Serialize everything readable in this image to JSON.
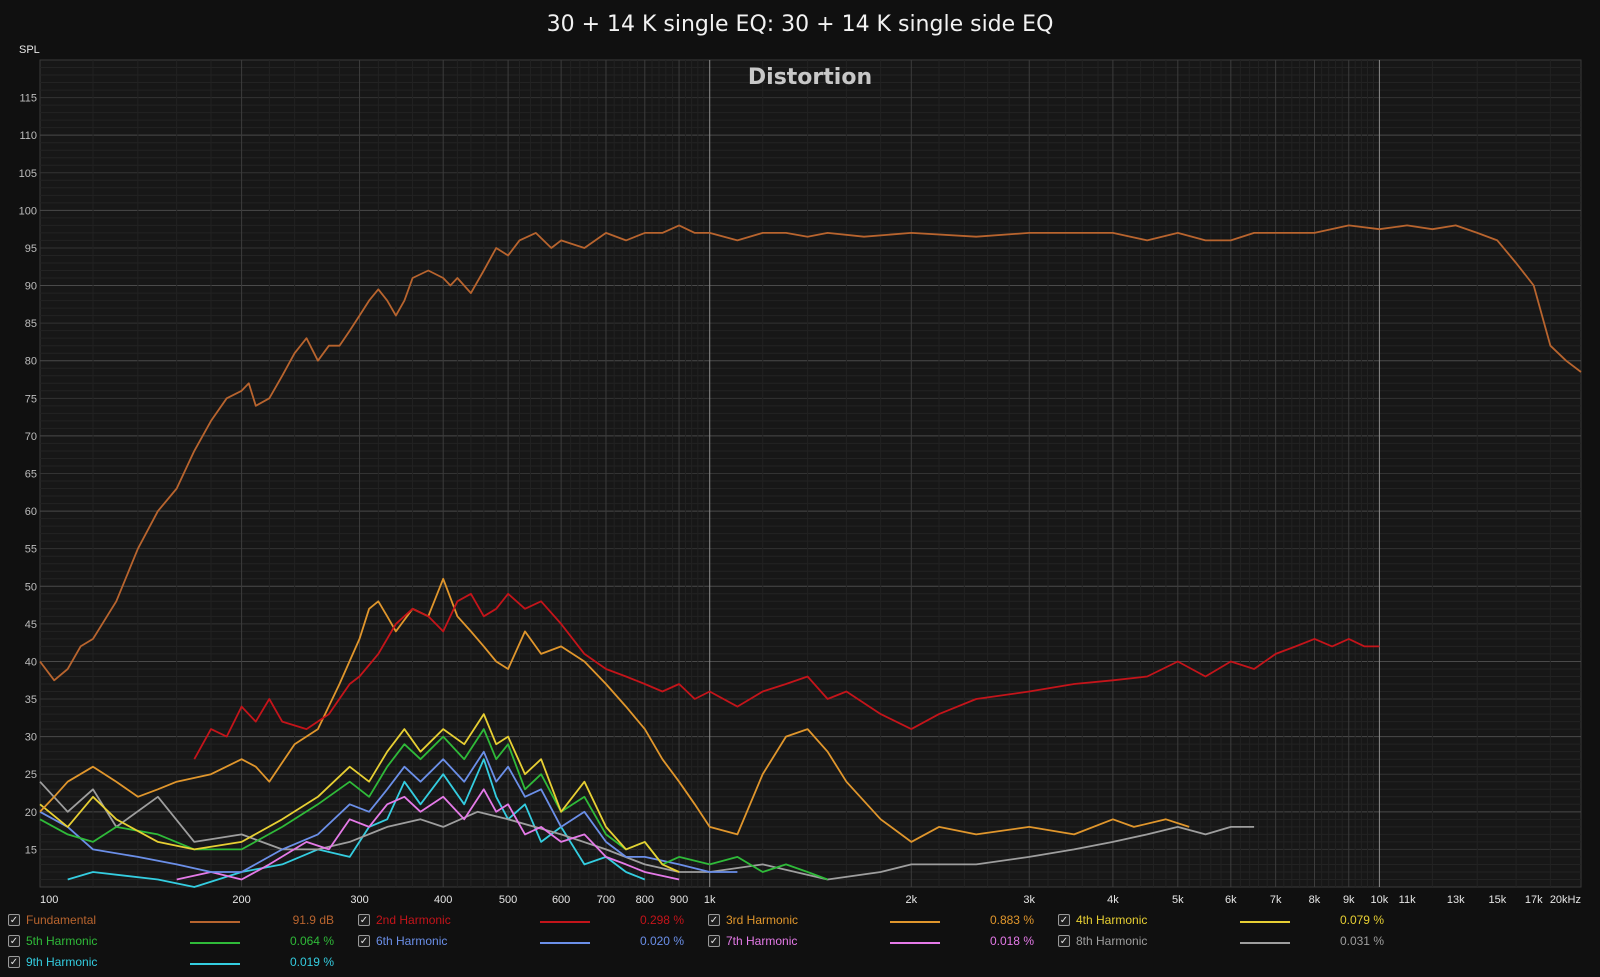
{
  "chart_data": {
    "type": "line",
    "title": "30 + 14 K single EQ: 30 + 14 K single side EQ",
    "plot_label": "Distortion",
    "ylabel": "SPL",
    "x_scale": "log",
    "xlim": [
      100,
      20000
    ],
    "ylim": [
      10,
      120
    ],
    "grid": true,
    "x_tick_labels": [
      {
        "v": 100,
        "t": "100"
      },
      {
        "v": 200,
        "t": "200"
      },
      {
        "v": 300,
        "t": "300"
      },
      {
        "v": 400,
        "t": "400"
      },
      {
        "v": 500,
        "t": "500"
      },
      {
        "v": 600,
        "t": "600"
      },
      {
        "v": 700,
        "t": "700"
      },
      {
        "v": 800,
        "t": "800"
      },
      {
        "v": 900,
        "t": "900"
      },
      {
        "v": 1000,
        "t": "1k"
      },
      {
        "v": 2000,
        "t": "2k"
      },
      {
        "v": 3000,
        "t": "3k"
      },
      {
        "v": 4000,
        "t": "4k"
      },
      {
        "v": 5000,
        "t": "5k"
      },
      {
        "v": 6000,
        "t": "6k"
      },
      {
        "v": 7000,
        "t": "7k"
      },
      {
        "v": 8000,
        "t": "8k"
      },
      {
        "v": 9000,
        "t": "9k"
      },
      {
        "v": 10000,
        "t": "10k"
      },
      {
        "v": 11000,
        "t": "11k"
      },
      {
        "v": 13000,
        "t": "13k"
      },
      {
        "v": 15000,
        "t": "15k"
      },
      {
        "v": 17000,
        "t": "17k"
      },
      {
        "v": 20000,
        "t": "20kHz"
      }
    ],
    "y_ticks": [
      15,
      20,
      25,
      30,
      35,
      40,
      45,
      50,
      55,
      60,
      65,
      70,
      75,
      80,
      85,
      90,
      95,
      100,
      105,
      110,
      115
    ],
    "series": [
      {
        "name": "Fundamental",
        "color": "#b8642e",
        "value_label": "91.9 dB",
        "x": [
          100,
          105,
          110,
          115,
          120,
          130,
          140,
          150,
          160,
          170,
          180,
          190,
          200,
          205,
          210,
          220,
          230,
          240,
          250,
          260,
          270,
          280,
          290,
          300,
          310,
          320,
          330,
          340,
          350,
          360,
          380,
          400,
          410,
          420,
          440,
          460,
          480,
          500,
          520,
          550,
          580,
          600,
          650,
          700,
          750,
          800,
          850,
          900,
          950,
          1000,
          1100,
          1200,
          1300,
          1400,
          1500,
          1700,
          2000,
          2500,
          3000,
          3500,
          4000,
          4500,
          5000,
          5500,
          6000,
          6500,
          7000,
          8000,
          9000,
          10000,
          11000,
          12000,
          13000,
          14000,
          15000,
          16000,
          17000,
          18000,
          19000,
          20000
        ],
        "y": [
          40,
          37.5,
          39,
          42,
          43,
          48,
          55,
          60,
          63,
          68,
          72,
          75,
          76,
          77,
          74,
          75,
          78,
          81,
          83,
          80,
          82,
          82,
          84,
          86,
          88,
          89.5,
          88,
          86,
          88,
          91,
          92,
          91,
          90,
          91,
          89,
          92,
          95,
          94,
          96,
          97,
          95,
          96,
          95,
          97,
          96,
          97,
          97,
          98,
          97,
          97,
          96,
          97,
          97,
          96.5,
          97,
          96.5,
          97,
          96.5,
          97,
          97,
          97,
          96,
          97,
          96,
          96,
          97,
          97,
          97,
          98,
          97.5,
          98,
          97.5,
          98,
          97,
          96,
          93,
          90,
          82,
          80,
          78.5
        ]
      },
      {
        "name": "2nd Harmonic",
        "color": "#c4141a",
        "value_label": "0.298 %",
        "x": [
          170,
          180,
          190,
          200,
          210,
          220,
          230,
          250,
          270,
          290,
          300,
          320,
          340,
          360,
          380,
          400,
          420,
          440,
          460,
          480,
          500,
          530,
          560,
          600,
          650,
          700,
          750,
          800,
          850,
          900,
          950,
          1000,
          1100,
          1200,
          1300,
          1400,
          1500,
          1600,
          1800,
          2000,
          2200,
          2500,
          3000,
          3500,
          4000,
          4500,
          5000,
          5500,
          6000,
          6500,
          7000,
          7500,
          8000,
          8500,
          9000,
          9500,
          10000
        ],
        "y": [
          27,
          31,
          30,
          34,
          32,
          35,
          32,
          31,
          33,
          37,
          38,
          41,
          45,
          47,
          46,
          44,
          48,
          49,
          46,
          47,
          49,
          47,
          48,
          45,
          41,
          39,
          38,
          37,
          36,
          37,
          35,
          36,
          34,
          36,
          37,
          38,
          35,
          36,
          33,
          31,
          33,
          35,
          36,
          37,
          37.5,
          38,
          40,
          38,
          40,
          39,
          41,
          42,
          43,
          42,
          43,
          42,
          42
        ]
      },
      {
        "name": "3rd Harmonic",
        "color": "#e0962c",
        "value_label": "0.883 %",
        "x": [
          100,
          105,
          110,
          120,
          130,
          140,
          150,
          160,
          180,
          200,
          210,
          220,
          240,
          260,
          280,
          300,
          310,
          320,
          330,
          340,
          360,
          380,
          400,
          420,
          440,
          460,
          480,
          500,
          530,
          560,
          600,
          650,
          700,
          750,
          800,
          850,
          900,
          950,
          1000,
          1100,
          1200,
          1300,
          1400,
          1500,
          1600,
          1800,
          2000,
          2200,
          2500,
          3000,
          3500,
          4000,
          4300,
          4800,
          5200
        ],
        "y": [
          20,
          22,
          24,
          26,
          24,
          22,
          23,
          24,
          25,
          27,
          26,
          24,
          29,
          31,
          37,
          43,
          47,
          48,
          46,
          44,
          47,
          46,
          51,
          46,
          44,
          42,
          40,
          39,
          44,
          41,
          42,
          40,
          37,
          34,
          31,
          27,
          24,
          21,
          18,
          17,
          25,
          30,
          31,
          28,
          24,
          19,
          16,
          18,
          17,
          18,
          17,
          19,
          18,
          19,
          18
        ]
      },
      {
        "name": "4th Harmonic",
        "color": "#e7cf33",
        "value_label": "0.079 %",
        "x": [
          100,
          110,
          120,
          130,
          150,
          170,
          200,
          230,
          260,
          290,
          310,
          330,
          350,
          370,
          400,
          430,
          460,
          480,
          500,
          530,
          560,
          600,
          650,
          700,
          750,
          800,
          850,
          900
        ],
        "y": [
          21,
          18,
          22,
          19,
          16,
          15,
          16,
          19,
          22,
          26,
          24,
          28,
          31,
          28,
          31,
          29,
          33,
          29,
          30,
          25,
          27,
          20,
          24,
          18,
          15,
          16,
          13,
          12
        ]
      },
      {
        "name": "5th Harmonic",
        "color": "#2fba39",
        "value_label": "0.064 %",
        "x": [
          100,
          110,
          120,
          130,
          150,
          170,
          200,
          230,
          260,
          290,
          310,
          330,
          350,
          370,
          400,
          430,
          460,
          480,
          500,
          530,
          560,
          600,
          650,
          700,
          750,
          800,
          850,
          900,
          1000,
          1100,
          1200,
          1300,
          1400,
          1500
        ],
        "y": [
          19,
          17,
          16,
          18,
          17,
          15,
          15,
          18,
          21,
          24,
          22,
          26,
          29,
          27,
          30,
          27,
          31,
          27,
          29,
          23,
          25,
          20,
          22,
          17,
          15,
          16,
          13,
          14,
          13,
          14,
          12,
          13,
          12,
          11
        ]
      },
      {
        "name": "6th Harmonic",
        "color": "#6b8fe8",
        "value_label": "0.020 %",
        "x": [
          100,
          110,
          120,
          140,
          160,
          180,
          200,
          230,
          260,
          290,
          310,
          330,
          350,
          370,
          400,
          430,
          460,
          480,
          500,
          530,
          560,
          600,
          650,
          700,
          750,
          800,
          900,
          1000,
          1100
        ],
        "y": [
          20,
          18,
          15,
          14,
          13,
          12,
          12,
          15,
          17,
          21,
          20,
          23,
          26,
          24,
          27,
          24,
          28,
          24,
          26,
          22,
          23,
          18,
          20,
          16,
          14,
          14,
          13,
          12,
          12
        ]
      },
      {
        "name": "7th Harmonic",
        "color": "#e57ae8",
        "value_label": "0.018 %",
        "x": [
          160,
          180,
          200,
          220,
          250,
          270,
          290,
          310,
          330,
          350,
          370,
          400,
          430,
          460,
          480,
          500,
          530,
          560,
          600,
          650,
          700,
          750,
          800,
          900
        ],
        "y": [
          11,
          12,
          11,
          13,
          16,
          15,
          19,
          18,
          21,
          22,
          20,
          22,
          19,
          23,
          20,
          21,
          17,
          18,
          16,
          17,
          14,
          13,
          12,
          11
        ]
      },
      {
        "name": "8th Harmonic",
        "color": "#9e9e9e",
        "value_label": "0.031 %",
        "x": [
          100,
          110,
          120,
          130,
          150,
          170,
          200,
          230,
          260,
          290,
          330,
          370,
          400,
          450,
          500,
          600,
          700,
          800,
          900,
          1000,
          1200,
          1500,
          1800,
          2000,
          2500,
          3000,
          3500,
          4000,
          4500,
          5000,
          5500,
          6000,
          6500
        ],
        "y": [
          24,
          20,
          23,
          18,
          22,
          16,
          17,
          15,
          15,
          16,
          18,
          19,
          18,
          20,
          19,
          17,
          15,
          13,
          12,
          12,
          13,
          11,
          12,
          13,
          13,
          14,
          15,
          16,
          17,
          18,
          17,
          18,
          18
        ]
      },
      {
        "name": "9th Harmonic",
        "color": "#34cde0",
        "value_label": "0.019 %",
        "x": [
          110,
          120,
          150,
          170,
          200,
          230,
          260,
          290,
          310,
          330,
          350,
          370,
          400,
          430,
          460,
          480,
          500,
          530,
          560,
          600,
          650,
          700,
          750,
          800
        ],
        "y": [
          11,
          12,
          11,
          10,
          12,
          13,
          15,
          14,
          18,
          19,
          24,
          21,
          25,
          21,
          27,
          22,
          19,
          21,
          16,
          18,
          13,
          14,
          12,
          11
        ]
      }
    ]
  },
  "legend": [
    {
      "checked": "✓",
      "name": "Fundamental",
      "value": "91.9 dB",
      "color": "#b8642e"
    },
    {
      "checked": "✓",
      "name": "2nd Harmonic",
      "value": "0.298 %",
      "color": "#c4141a"
    },
    {
      "checked": "✓",
      "name": "3rd Harmonic",
      "value": "0.883 %",
      "color": "#e0962c"
    },
    {
      "checked": "✓",
      "name": "4th Harmonic",
      "value": "0.079 %",
      "color": "#e7cf33"
    },
    {
      "checked": "✓",
      "name": "5th Harmonic",
      "value": "0.064 %",
      "color": "#2fba39"
    },
    {
      "checked": "✓",
      "name": "6th Harmonic",
      "value": "0.020 %",
      "color": "#6b8fe8"
    },
    {
      "checked": "✓",
      "name": "7th Harmonic",
      "value": "0.018 %",
      "color": "#e57ae8"
    },
    {
      "checked": "✓",
      "name": "8th Harmonic",
      "value": "0.031 %",
      "color": "#9e9e9e"
    },
    {
      "checked": "✓",
      "name": "9th Harmonic",
      "value": "0.019 %",
      "color": "#34cde0"
    }
  ]
}
